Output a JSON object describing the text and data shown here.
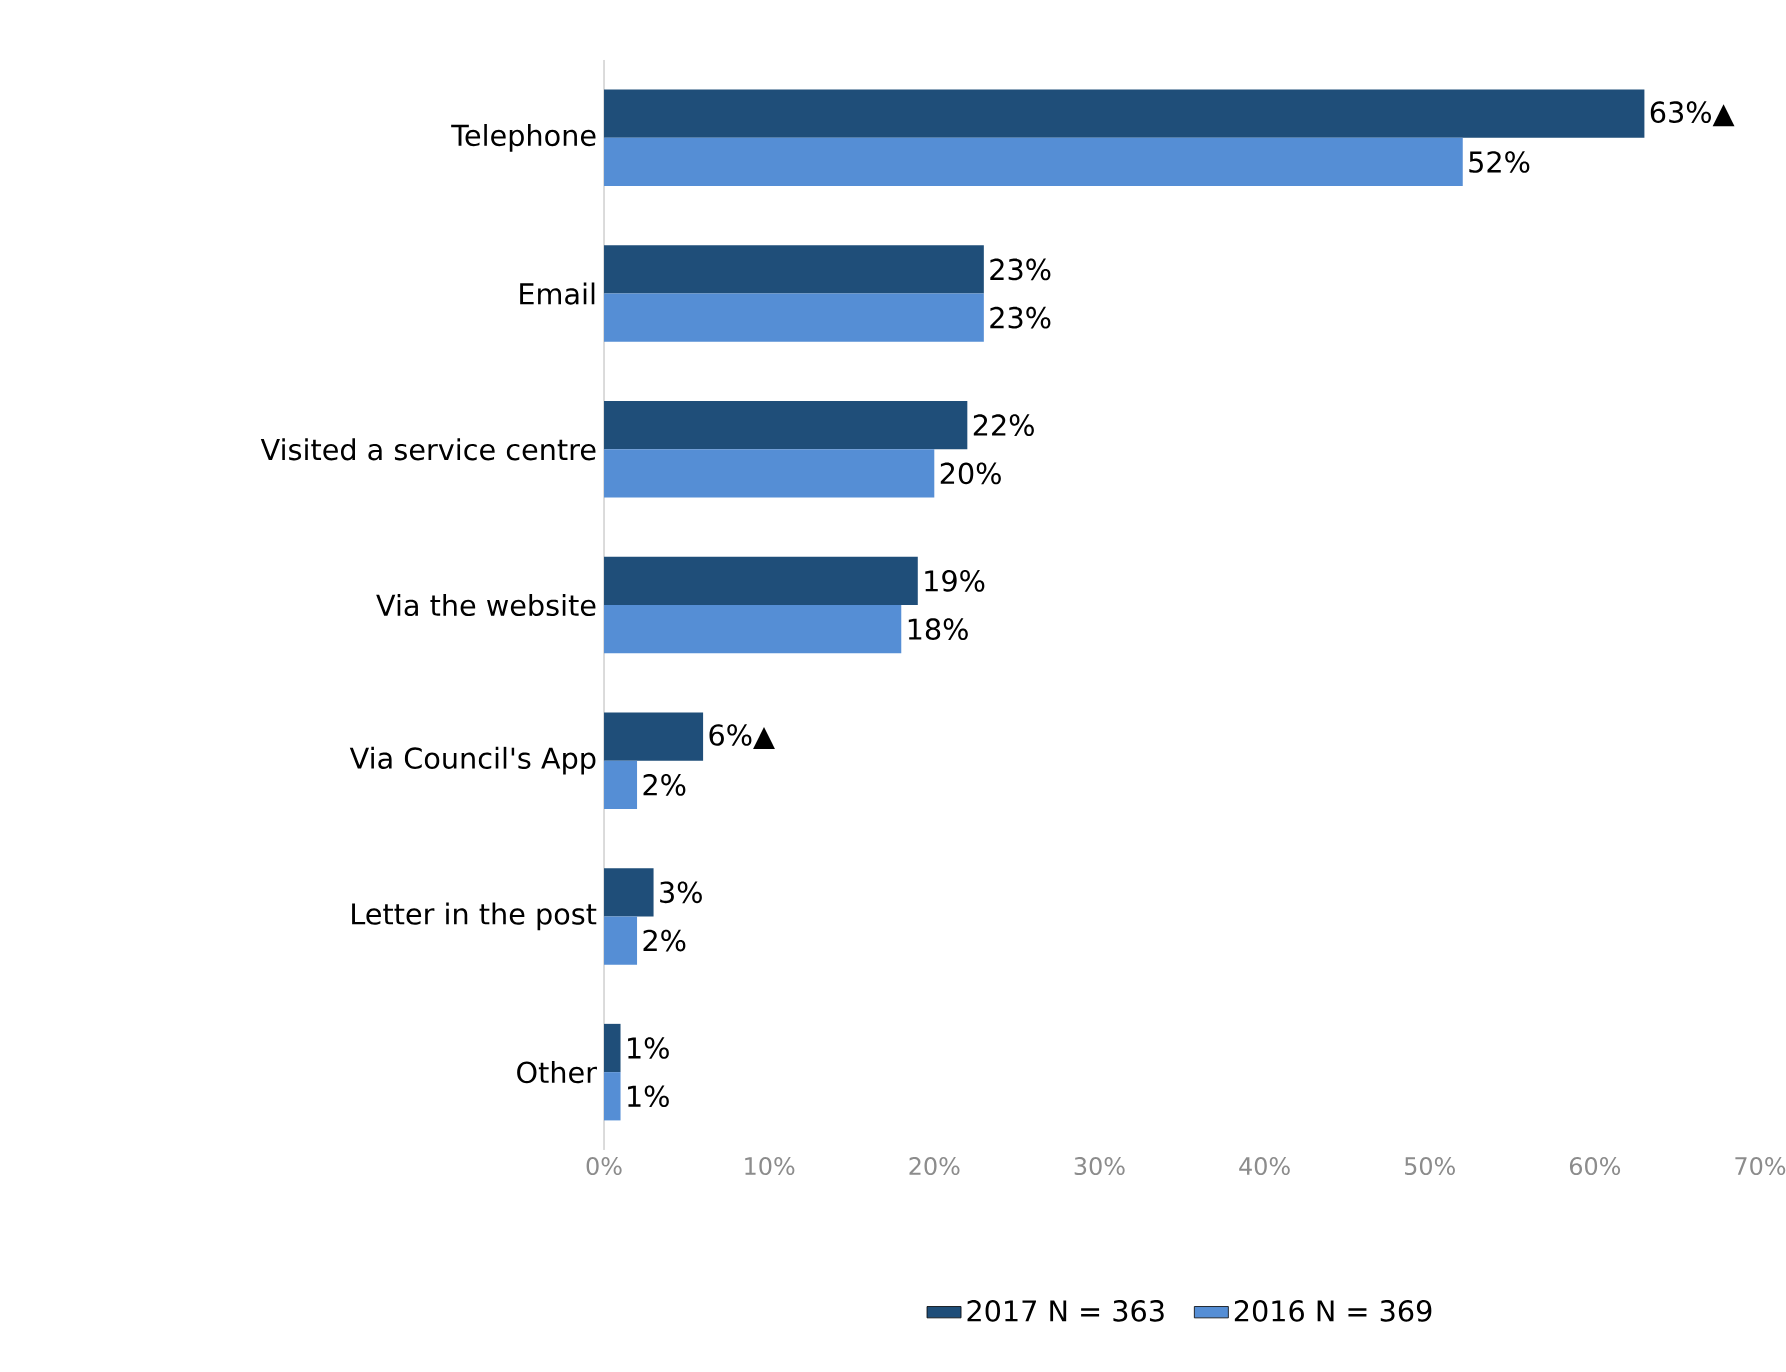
{
  "chart_data": {
    "type": "bar",
    "orientation": "horizontal",
    "categories": [
      "Telephone",
      "Email",
      "Visited a service centre",
      "Via the website",
      "Via Council's App",
      "Letter in the post",
      "Other"
    ],
    "series": [
      {
        "name": "2017 N = 363",
        "color": "#1f4e79",
        "values": [
          63,
          23,
          22,
          19,
          6,
          3,
          1
        ],
        "value_labels": [
          "63%▲",
          "23%",
          "22%",
          "19%",
          "6%▲",
          "3%",
          "1%"
        ]
      },
      {
        "name": "2016 N = 369",
        "color": "#558ed5",
        "values": [
          52,
          23,
          20,
          18,
          2,
          2,
          1
        ],
        "value_labels": [
          "52%",
          "23%",
          "20%",
          "18%",
          "2%",
          "2%",
          "1%"
        ]
      }
    ],
    "xlim": [
      0,
      70
    ],
    "xticks": [
      {
        "value": 0,
        "label": "0%"
      },
      {
        "value": 10,
        "label": "10%"
      },
      {
        "value": 20,
        "label": "20%"
      },
      {
        "value": 30,
        "label": "30%"
      },
      {
        "value": 40,
        "label": "40%"
      },
      {
        "value": 50,
        "label": "50%"
      },
      {
        "value": 60,
        "label": "60%"
      },
      {
        "value": 70,
        "label": "70%"
      }
    ],
    "legend": "bottom"
  }
}
